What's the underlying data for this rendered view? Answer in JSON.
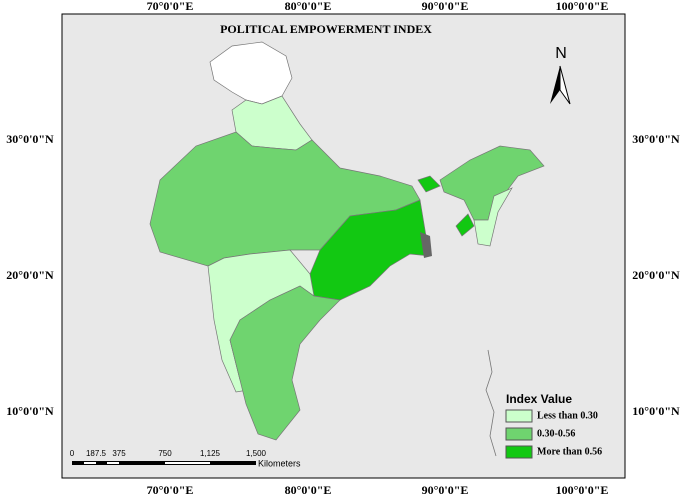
{
  "title": "POLITICAL EMPOWERMENT INDEX",
  "graticule": {
    "longitudes": [
      "70°0'0\"E",
      "80°0'0\"E",
      "90°0'0\"E",
      "100°0'0\"E"
    ],
    "latitudes": [
      "30°0'0\"N",
      "20°0'0\"N",
      "10°0'0\"N"
    ]
  },
  "north_arrow": "N",
  "legend": {
    "title": "Index Value",
    "items": [
      {
        "label": "Less than 0.30",
        "color": "#ccffcc"
      },
      {
        "label": "0.30-0.56",
        "color": "#6fd46f"
      },
      {
        "label": "More than 0.56",
        "color": "#12c812"
      }
    ]
  },
  "scale_bar": {
    "ticks": [
      "0",
      "187.5",
      "375",
      "750",
      "1,125",
      "1,500"
    ],
    "unit": "Kilometers"
  }
}
